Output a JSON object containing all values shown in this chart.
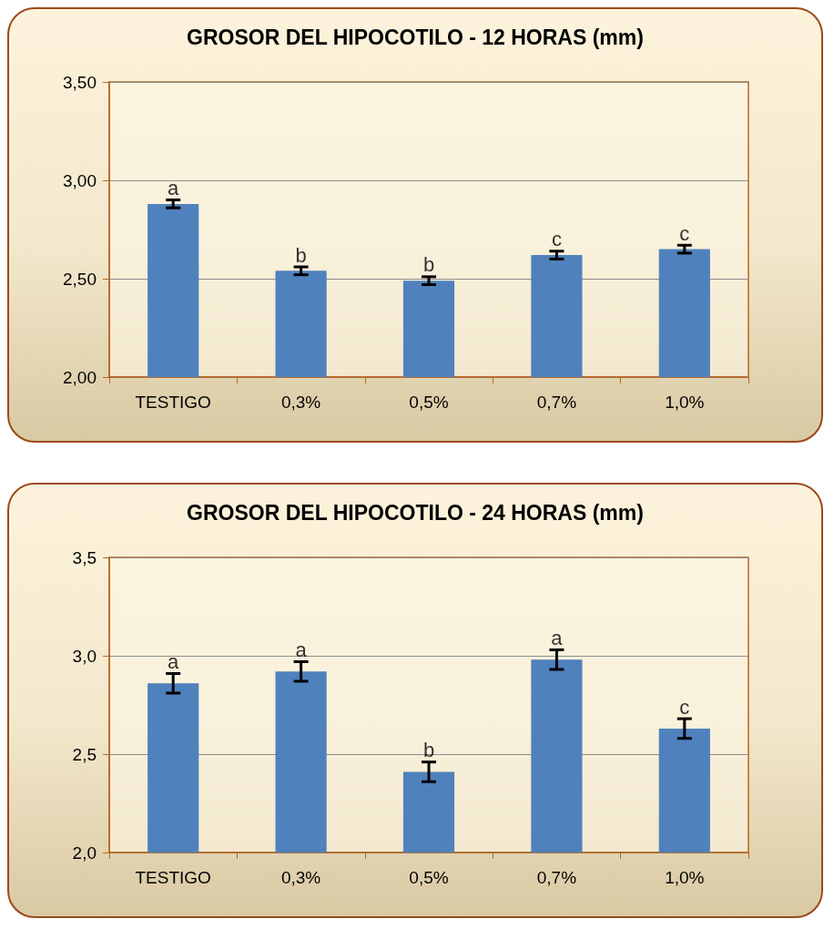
{
  "chart_data": [
    {
      "type": "bar",
      "title": "GROSOR DEL HIPOCOTILO - 12 HORAS (mm)",
      "categories": [
        "TESTIGO",
        "0,3%",
        "0,5%",
        "0,7%",
        "1,0%"
      ],
      "values": [
        2.88,
        2.54,
        2.49,
        2.62,
        2.65
      ],
      "errors": [
        0.02,
        0.02,
        0.02,
        0.02,
        0.02
      ],
      "color": "#4f81bd",
      "ylim": [
        2.0,
        3.5
      ],
      "yticks": [
        {
          "value": 2.0,
          "label": "2,00"
        },
        {
          "value": 2.5,
          "label": "2,50"
        },
        {
          "value": 3.0,
          "label": "3,00"
        },
        {
          "value": 3.5,
          "label": "3,50"
        }
      ],
      "grid": "y",
      "annotations": [
        {
          "text": "a",
          "x": "TESTIGO",
          "y": 2.9
        },
        {
          "text": "b",
          "x": "0,3%",
          "y": 2.56
        },
        {
          "text": "b",
          "x": "0,5%",
          "y": 2.51
        },
        {
          "text": "c",
          "x": "0,7%",
          "y": 2.64
        },
        {
          "text": "c",
          "x": "1,0%",
          "y": 2.67
        }
      ]
    },
    {
      "type": "bar",
      "title": "GROSOR DEL HIPOCOTILO - 24 HORAS (mm)",
      "categories": [
        "TESTIGO",
        "0,3%",
        "0,5%",
        "0,7%",
        "1,0%"
      ],
      "values": [
        2.86,
        2.92,
        2.41,
        2.98,
        2.63
      ],
      "errors": [
        0.05,
        0.05,
        0.05,
        0.05,
        0.05
      ],
      "color": "#4f81bd",
      "ylim": [
        2.0,
        3.5
      ],
      "yticks": [
        {
          "value": 2.0,
          "label": "2,0"
        },
        {
          "value": 2.5,
          "label": "2,5"
        },
        {
          "value": 3.0,
          "label": "3,0"
        },
        {
          "value": 3.5,
          "label": "3,5"
        }
      ],
      "grid": "y",
      "annotations": [
        {
          "text": "a",
          "x": "TESTIGO",
          "y": 2.91
        },
        {
          "text": "a",
          "x": "0,3%",
          "y": 2.97
        },
        {
          "text": "b",
          "x": "0,5%",
          "y": 2.46
        },
        {
          "text": "a",
          "x": "0,7%",
          "y": 3.03
        },
        {
          "text": "c",
          "x": "1,0%",
          "y": 2.68
        }
      ]
    }
  ]
}
